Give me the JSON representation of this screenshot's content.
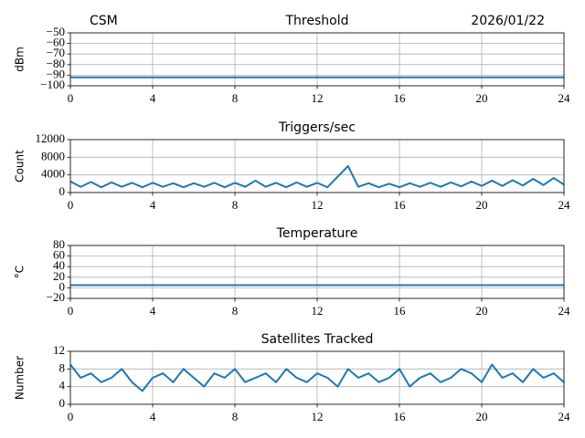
{
  "chart_data": [
    {
      "type": "line",
      "title": "Threshold",
      "annotations": [
        "CSM",
        "2026/01/22"
      ],
      "ylabel": "dBm",
      "color": "#1f77b4",
      "grid": true,
      "x": [
        0,
        24
      ],
      "values": [
        -92,
        -92
      ],
      "xlim": [
        0,
        24
      ],
      "xticks": [
        0,
        4,
        8,
        12,
        16,
        20,
        24
      ],
      "ylim": [
        -100,
        -50
      ],
      "yticks": [
        {
          "value": -100,
          "label": "−100"
        },
        {
          "value": -90,
          "label": "−90"
        },
        {
          "value": -80,
          "label": "−80"
        },
        {
          "value": -70,
          "label": "−70"
        },
        {
          "value": -60,
          "label": "−60"
        },
        {
          "value": -50,
          "label": "−50"
        }
      ]
    },
    {
      "type": "line",
      "title": "Triggers/sec",
      "ylabel": "Count",
      "color": "#1f77b4",
      "grid": true,
      "x": [
        0,
        0.5,
        1,
        1.5,
        2,
        2.5,
        3,
        3.5,
        4,
        4.5,
        5,
        5.5,
        6,
        6.5,
        7,
        7.5,
        8,
        8.5,
        9,
        9.5,
        10,
        10.5,
        11,
        11.5,
        12,
        12.5,
        13,
        13.5,
        14,
        14.5,
        15,
        15.5,
        16,
        16.5,
        17,
        17.5,
        18,
        18.5,
        19,
        19.5,
        20,
        20.5,
        21,
        21.5,
        22,
        22.5,
        23,
        23.5,
        24
      ],
      "values": [
        2500,
        1300,
        2400,
        1200,
        2300,
        1300,
        2200,
        1200,
        2200,
        1300,
        2100,
        1200,
        2100,
        1300,
        2200,
        1200,
        2200,
        1300,
        2700,
        1300,
        2200,
        1200,
        2300,
        1300,
        2200,
        1200,
        3600,
        6000,
        1300,
        2100,
        1200,
        2000,
        1200,
        2100,
        1300,
        2200,
        1300,
        2300,
        1400,
        2500,
        1500,
        2700,
        1500,
        2800,
        1600,
        3100,
        1700,
        3300,
        1800
      ],
      "xlim": [
        0,
        24
      ],
      "xticks": [
        0,
        4,
        8,
        12,
        16,
        20,
        24
      ],
      "ylim": [
        0,
        12000
      ],
      "yticks": [
        0,
        4000,
        8000,
        12000
      ]
    },
    {
      "type": "line",
      "title": "Temperature",
      "ylabel": "°C",
      "color": "#1f77b4",
      "grid": true,
      "x": [
        0,
        24
      ],
      "values": [
        5,
        5
      ],
      "xlim": [
        0,
        24
      ],
      "xticks": [
        0,
        4,
        8,
        12,
        16,
        20,
        24
      ],
      "ylim": [
        -20,
        80
      ],
      "yticks": [
        {
          "value": -20,
          "label": "−20"
        },
        0,
        20,
        40,
        60,
        80
      ]
    },
    {
      "type": "line",
      "title": "Satellites Tracked",
      "ylabel": "Number",
      "color": "#1f77b4",
      "grid": true,
      "x": [
        0,
        0.5,
        1,
        1.5,
        2,
        2.5,
        3,
        3.5,
        4,
        4.5,
        5,
        5.5,
        6,
        6.5,
        7,
        7.5,
        8,
        8.5,
        9,
        9.5,
        10,
        10.5,
        11,
        11.5,
        12,
        12.5,
        13,
        13.5,
        14,
        14.5,
        15,
        15.5,
        16,
        16.5,
        17,
        17.5,
        18,
        18.5,
        19,
        19.5,
        20,
        20.5,
        21,
        21.5,
        22,
        22.5,
        23,
        23.5,
        24
      ],
      "values": [
        9,
        6,
        7,
        5,
        6,
        8,
        5,
        3,
        6,
        7,
        5,
        8,
        6,
        4,
        7,
        6,
        8,
        5,
        6,
        7,
        5,
        8,
        6,
        5,
        7,
        6,
        4,
        8,
        6,
        7,
        5,
        6,
        8,
        4,
        6,
        7,
        5,
        6,
        8,
        7,
        5,
        9,
        6,
        7,
        5,
        8,
        6,
        7,
        5
      ],
      "xlim": [
        0,
        24
      ],
      "xticks": [
        0,
        4,
        8,
        12,
        16,
        20,
        24
      ],
      "ylim": [
        0,
        12
      ],
      "yticks": [
        0,
        4,
        8,
        12
      ]
    }
  ]
}
